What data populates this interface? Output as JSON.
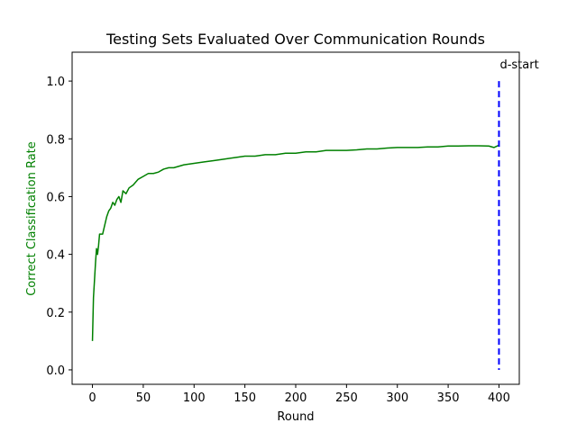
{
  "chart_data": {
    "type": "line",
    "title": "Testing Sets Evaluated Over Communication Rounds",
    "xlabel": "Round",
    "ylabel": "Correct Classification Rate",
    "xlim": [
      -20,
      420
    ],
    "ylim": [
      -0.05,
      1.1
    ],
    "xticks": [
      0,
      50,
      100,
      150,
      200,
      250,
      300,
      350,
      400
    ],
    "yticks": [
      0.0,
      0.2,
      0.4,
      0.6,
      0.8,
      1.0
    ],
    "ytick_labels": [
      "0.0",
      "0.2",
      "0.4",
      "0.6",
      "0.8",
      "1.0"
    ],
    "grid": false,
    "colors": {
      "series": "#008000",
      "ylabel": "#008000",
      "marker": "#0000ff"
    },
    "series": [
      {
        "color": "#008000",
        "x": [
          0,
          1,
          2,
          3,
          4,
          5,
          6,
          7,
          8,
          10,
          12,
          14,
          16,
          18,
          20,
          22,
          24,
          26,
          28,
          30,
          33,
          36,
          40,
          45,
          50,
          55,
          60,
          65,
          70,
          75,
          80,
          90,
          100,
          110,
          120,
          130,
          140,
          150,
          160,
          170,
          180,
          190,
          200,
          210,
          220,
          230,
          240,
          250,
          260,
          270,
          280,
          290,
          300,
          310,
          320,
          330,
          340,
          350,
          360,
          370,
          380,
          390,
          395,
          400
        ],
        "y": [
          0.1,
          0.25,
          0.31,
          0.37,
          0.42,
          0.4,
          0.43,
          0.47,
          0.47,
          0.47,
          0.5,
          0.53,
          0.55,
          0.56,
          0.58,
          0.57,
          0.59,
          0.6,
          0.58,
          0.62,
          0.61,
          0.63,
          0.64,
          0.66,
          0.67,
          0.68,
          0.68,
          0.685,
          0.695,
          0.7,
          0.7,
          0.71,
          0.715,
          0.72,
          0.725,
          0.73,
          0.735,
          0.74,
          0.74,
          0.745,
          0.745,
          0.75,
          0.75,
          0.755,
          0.755,
          0.76,
          0.76,
          0.76,
          0.762,
          0.765,
          0.765,
          0.768,
          0.77,
          0.77,
          0.77,
          0.772,
          0.772,
          0.775,
          0.775,
          0.776,
          0.776,
          0.775,
          0.77,
          0.778
        ]
      }
    ],
    "vline": {
      "x": 400,
      "y_range": [
        0.0,
        1.0
      ],
      "style": "dashed",
      "color": "#0000ff",
      "label": "d-start",
      "label_y": 1.06
    }
  }
}
